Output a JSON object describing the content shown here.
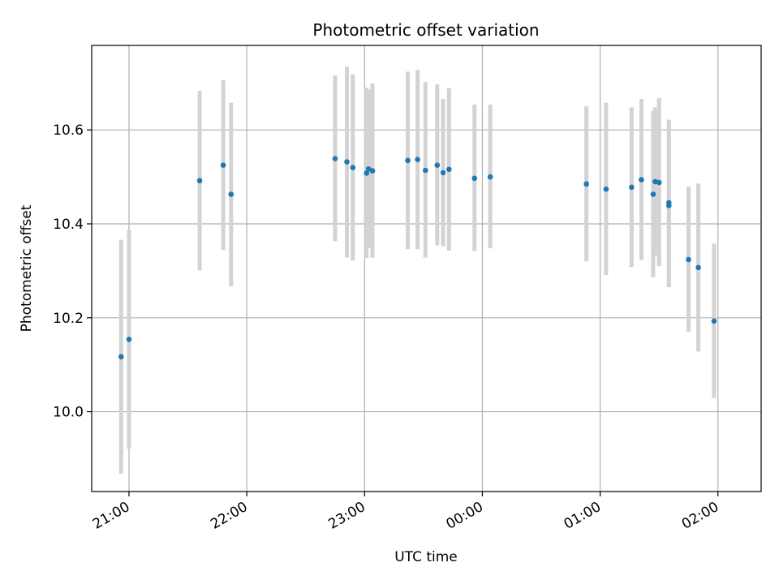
{
  "chart_data": {
    "type": "scatter",
    "title": "Photometric offset variation",
    "xlabel": "UTC time",
    "ylabel": "Photometric offset",
    "x_type": "time",
    "xlim": [
      "20:41",
      "02:22"
    ],
    "ylim": [
      9.83,
      10.78
    ],
    "x_ticks": [
      "21:00",
      "22:00",
      "23:00",
      "00:00",
      "01:00",
      "02:00"
    ],
    "y_ticks": [
      10.0,
      10.2,
      10.4,
      10.6
    ],
    "y_tick_labels": [
      "10.0",
      "10.2",
      "10.4",
      "10.6"
    ],
    "grid": true,
    "marker_color": "#1f77b4",
    "errorbar_color": "#d3d3d3",
    "points": [
      {
        "time": "20:56",
        "y": 10.117,
        "ylow": 9.868,
        "yhigh": 10.366
      },
      {
        "time": "21:00",
        "y": 10.154,
        "ylow": 9.921,
        "yhigh": 10.387
      },
      {
        "time": "21:36",
        "y": 10.492,
        "ylow": 10.301,
        "yhigh": 10.683
      },
      {
        "time": "21:48",
        "y": 10.525,
        "ylow": 10.344,
        "yhigh": 10.706
      },
      {
        "time": "21:52",
        "y": 10.463,
        "ylow": 10.267,
        "yhigh": 10.658
      },
      {
        "time": "22:45",
        "y": 10.539,
        "ylow": 10.363,
        "yhigh": 10.716
      },
      {
        "time": "22:51",
        "y": 10.532,
        "ylow": 10.328,
        "yhigh": 10.735
      },
      {
        "time": "22:54",
        "y": 10.52,
        "ylow": 10.322,
        "yhigh": 10.718
      },
      {
        "time": "23:01",
        "y": 10.508,
        "ylow": 10.327,
        "yhigh": 10.69
      },
      {
        "time": "23:02",
        "y": 10.517,
        "ylow": 10.349,
        "yhigh": 10.686
      },
      {
        "time": "23:04",
        "y": 10.513,
        "ylow": 10.328,
        "yhigh": 10.699
      },
      {
        "time": "23:22",
        "y": 10.535,
        "ylow": 10.346,
        "yhigh": 10.724
      },
      {
        "time": "23:27",
        "y": 10.537,
        "ylow": 10.346,
        "yhigh": 10.728
      },
      {
        "time": "23:31",
        "y": 10.514,
        "ylow": 10.328,
        "yhigh": 10.702
      },
      {
        "time": "23:37",
        "y": 10.525,
        "ylow": 10.354,
        "yhigh": 10.697
      },
      {
        "time": "23:40",
        "y": 10.509,
        "ylow": 10.352,
        "yhigh": 10.666
      },
      {
        "time": "23:43",
        "y": 10.516,
        "ylow": 10.343,
        "yhigh": 10.689
      },
      {
        "time": "23:56",
        "y": 10.497,
        "ylow": 10.342,
        "yhigh": 10.654
      },
      {
        "time": "00:04",
        "y": 10.5,
        "ylow": 10.348,
        "yhigh": 10.654
      },
      {
        "time": "00:53",
        "y": 10.485,
        "ylow": 10.32,
        "yhigh": 10.65
      },
      {
        "time": "01:03",
        "y": 10.474,
        "ylow": 10.291,
        "yhigh": 10.658
      },
      {
        "time": "01:16",
        "y": 10.478,
        "ylow": 10.308,
        "yhigh": 10.648
      },
      {
        "time": "01:21",
        "y": 10.494,
        "ylow": 10.323,
        "yhigh": 10.666
      },
      {
        "time": "01:27",
        "y": 10.463,
        "ylow": 10.286,
        "yhigh": 10.64
      },
      {
        "time": "01:28",
        "y": 10.49,
        "ylow": 10.332,
        "yhigh": 10.648
      },
      {
        "time": "01:30",
        "y": 10.488,
        "ylow": 10.31,
        "yhigh": 10.668
      },
      {
        "time": "01:35",
        "y": 10.439,
        "ylow": 10.265,
        "yhigh": 10.614
      },
      {
        "time": "01:35",
        "y": 10.445,
        "ylow": 10.268,
        "yhigh": 10.622
      },
      {
        "time": "01:45",
        "y": 10.324,
        "ylow": 10.17,
        "yhigh": 10.479
      },
      {
        "time": "01:50",
        "y": 10.307,
        "ylow": 10.128,
        "yhigh": 10.486
      },
      {
        "time": "01:58",
        "y": 10.193,
        "ylow": 10.029,
        "yhigh": 10.358
      }
    ]
  }
}
